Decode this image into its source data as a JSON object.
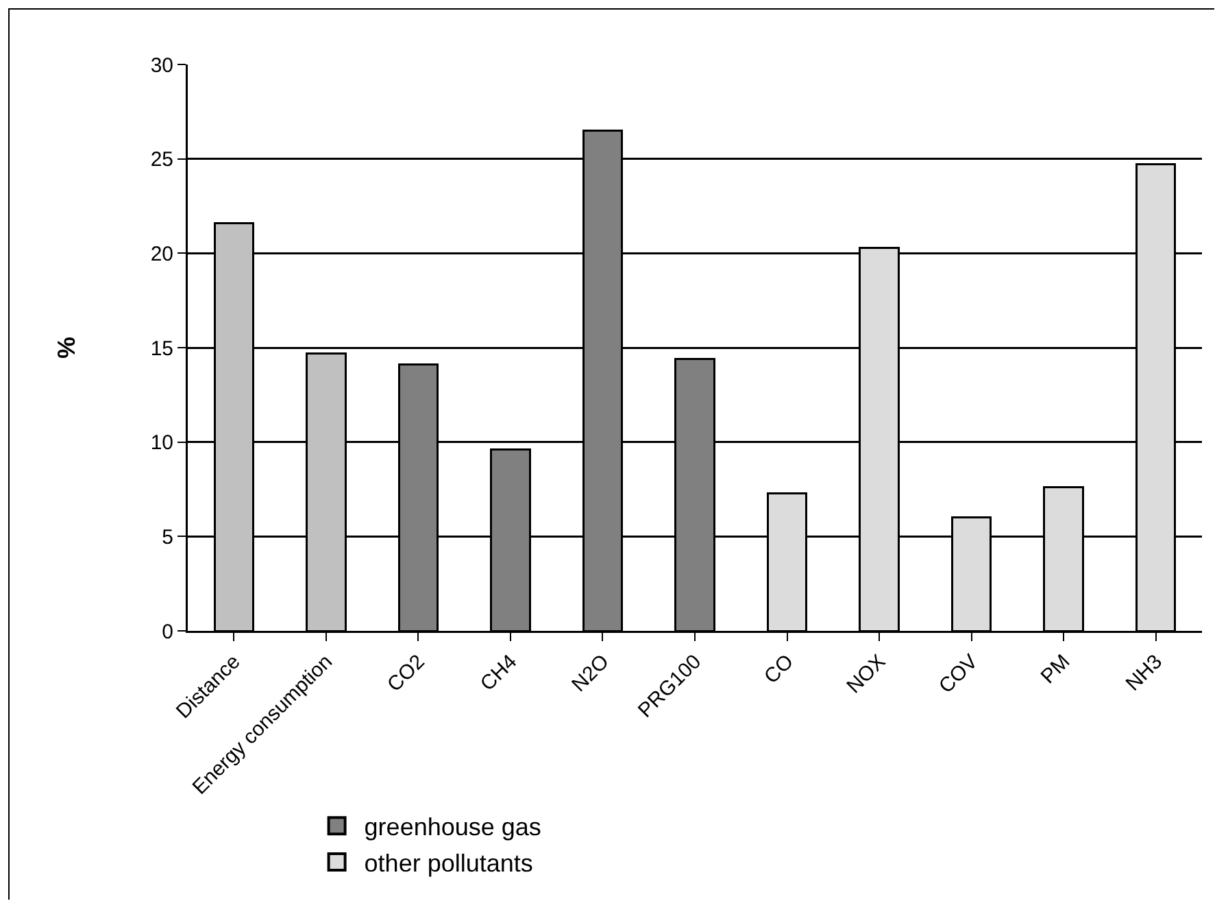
{
  "chart_data": {
    "type": "bar",
    "ylabel": "%",
    "categories": [
      "Distance",
      "Energy consumption",
      "CO2",
      "CH4",
      "N2O",
      "PRG100",
      "CO",
      "NOX",
      "COV",
      "PM",
      "NH3"
    ],
    "series": [
      {
        "color": "#c0c0c0",
        "values": [
          21.6,
          14.7,
          null,
          null,
          null,
          null,
          null,
          null,
          null,
          null,
          null
        ]
      },
      {
        "name": "greenhouse gas",
        "color": "#808080",
        "values": [
          null,
          null,
          14.1,
          9.6,
          26.5,
          14.4,
          null,
          null,
          null,
          null,
          null
        ]
      },
      {
        "name": "other pollutants",
        "color": "#dcdcdc",
        "values": [
          null,
          null,
          null,
          null,
          null,
          null,
          7.3,
          20.3,
          6.0,
          7.6,
          24.7
        ]
      }
    ],
    "stacked": true,
    "ylim": [
      0,
      30
    ],
    "yticks": [
      0,
      5,
      10,
      15,
      20,
      25,
      30
    ],
    "grid": "y",
    "legend": "bottom"
  }
}
